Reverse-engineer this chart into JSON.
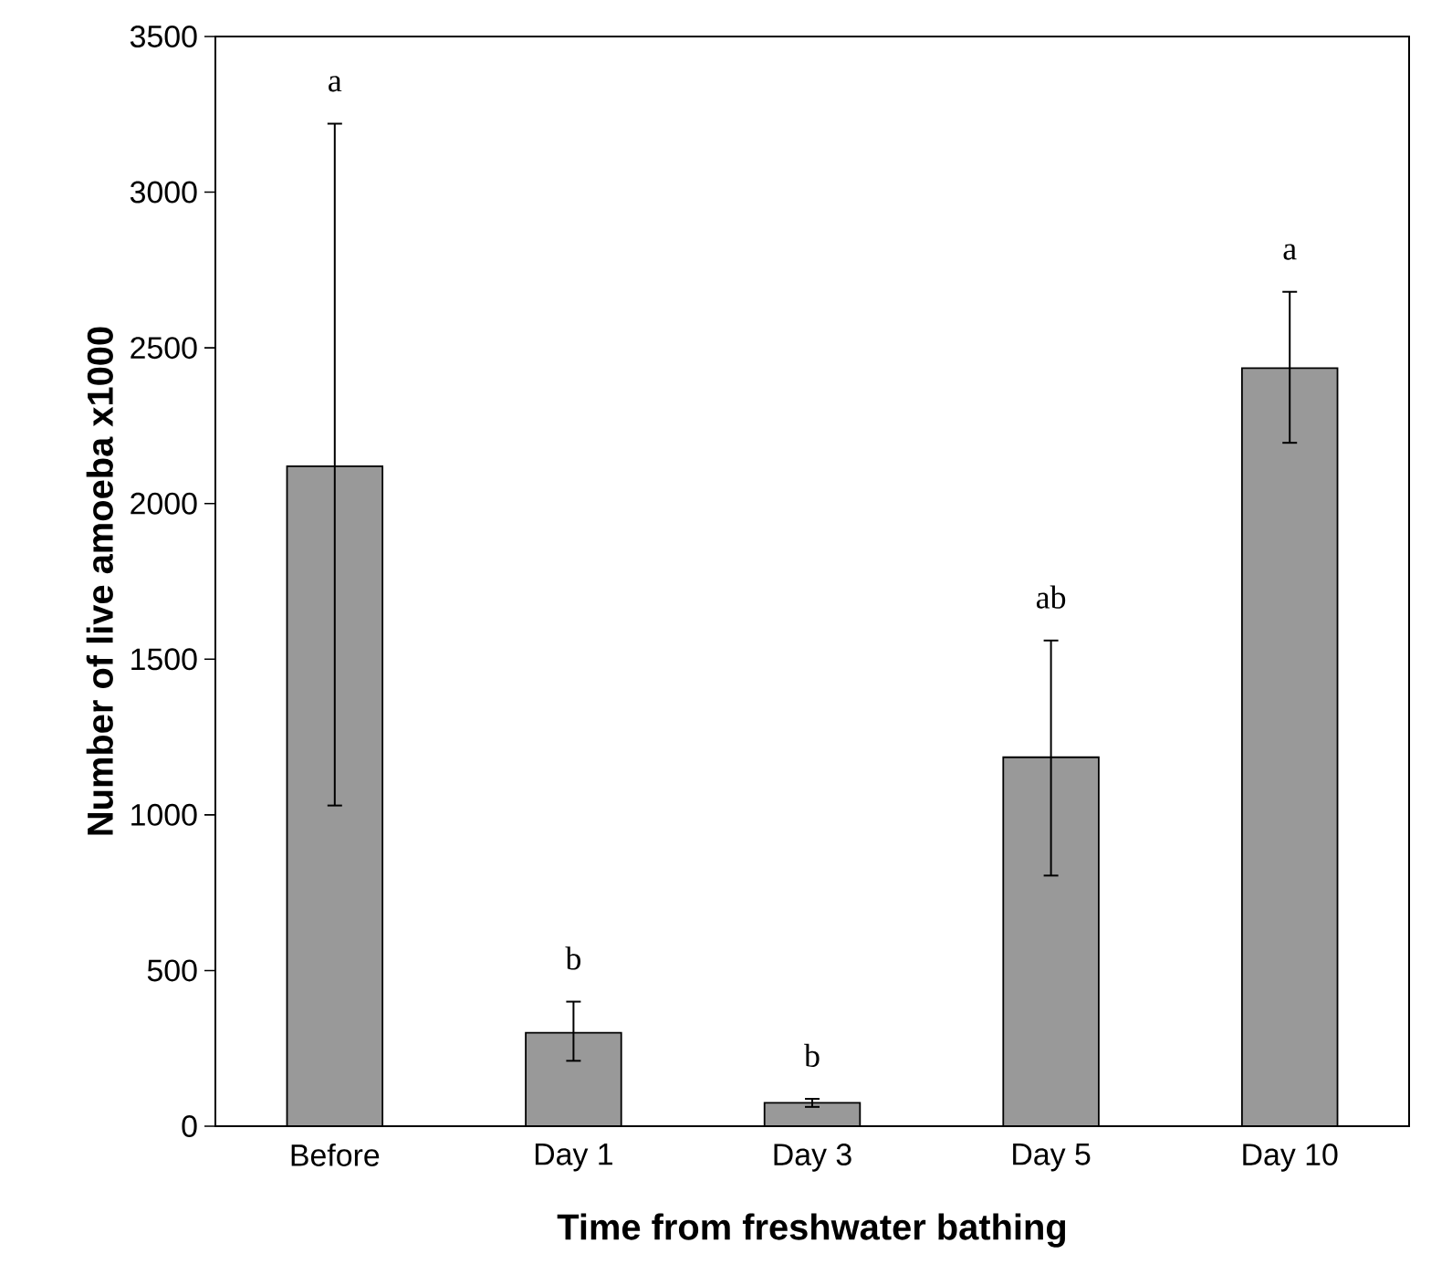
{
  "chart_data": {
    "type": "bar",
    "xlabel": "Time from freshwater bathing",
    "ylabel": "Number of live amoeba x1000",
    "categories": [
      "Before",
      "Day 1",
      "Day 3",
      "Day 5",
      "Day 10"
    ],
    "values": [
      2120,
      300,
      75,
      1185,
      2435
    ],
    "errors": [
      [
        1030,
        3220
      ],
      [
        210,
        400
      ],
      [
        62,
        88
      ],
      [
        805,
        1560
      ],
      [
        2195,
        2680
      ]
    ],
    "color": "#999999",
    "ylim": [
      0,
      3500
    ],
    "yticks": [
      0,
      500,
      1000,
      1500,
      2000,
      2500,
      3000,
      3500
    ],
    "grid": false,
    "annotations": [
      "a",
      "b",
      "b",
      "ab",
      "a"
    ]
  }
}
